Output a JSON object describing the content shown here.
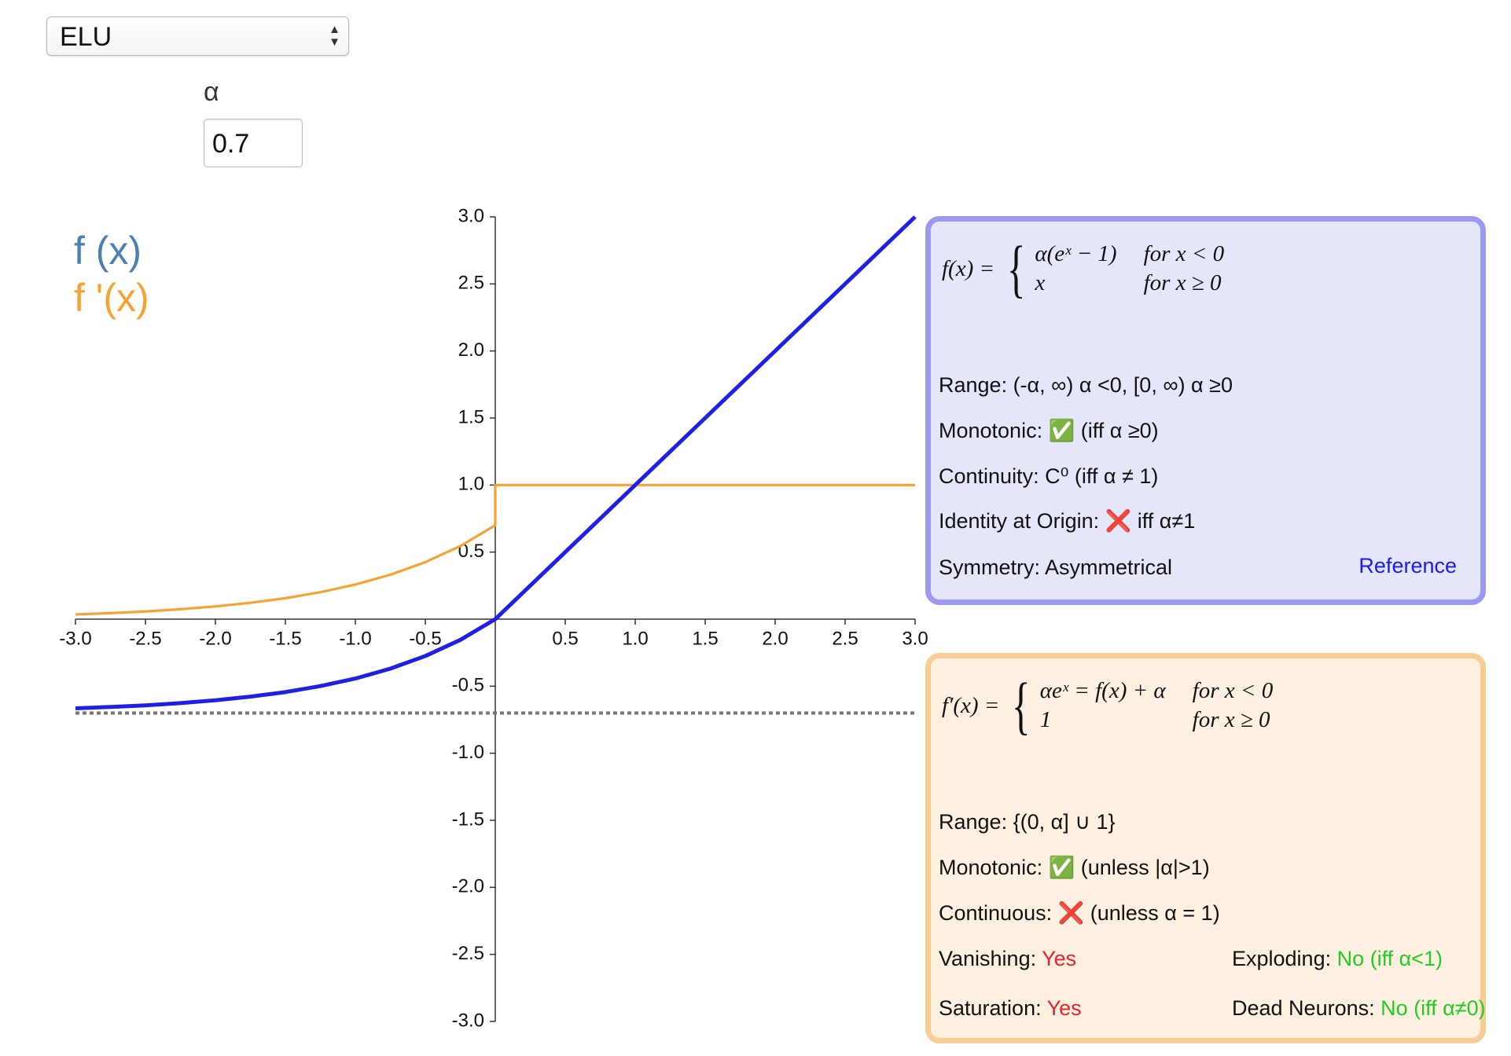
{
  "controls": {
    "activation": "ELU",
    "param_label": "α",
    "param_value": "0.7"
  },
  "chart_data": {
    "type": "line",
    "x": [
      -3,
      -2.75,
      -2.5,
      -2.25,
      -2,
      -1.75,
      -1.5,
      -1.25,
      -1,
      -0.75,
      -0.5,
      -0.25,
      0,
      0,
      3
    ],
    "series": [
      {
        "name": "f (x)",
        "color": "#1f1fe8",
        "legend_color": "#4a80b4",
        "values": [
          -0.665,
          -0.655,
          -0.643,
          -0.626,
          -0.605,
          -0.578,
          -0.544,
          -0.499,
          -0.443,
          -0.369,
          -0.275,
          -0.155,
          0,
          0,
          3
        ]
      },
      {
        "name": "f '(x)",
        "color": "#f6a334",
        "legend_color": "#f6a334",
        "values": [
          0.035,
          0.045,
          0.057,
          0.074,
          0.095,
          0.122,
          0.156,
          0.201,
          0.258,
          0.331,
          0.425,
          0.545,
          0.7,
          1,
          1
        ]
      }
    ],
    "asymptote": -0.7,
    "xlim": [
      -3,
      3
    ],
    "ylim": [
      -3,
      3
    ],
    "xticks": [
      {
        "value": -3,
        "label": "-3.0"
      },
      -2.5,
      {
        "value": -2,
        "label": "-2.0"
      },
      -1.5,
      {
        "value": -1,
        "label": "-1.0"
      },
      -0.5,
      0.5,
      {
        "value": 1,
        "label": "1.0"
      },
      1.5,
      {
        "value": 2,
        "label": "2.0"
      },
      2.5,
      {
        "value": 3,
        "label": "3.0"
      }
    ],
    "yticks": [
      {
        "value": 3,
        "label": "3.0"
      },
      2.5,
      {
        "value": 2,
        "label": "2.0"
      },
      1.5,
      {
        "value": 1,
        "label": "1.0"
      },
      0.5,
      -0.5,
      {
        "value": -1,
        "label": "-1.0"
      },
      -1.5,
      {
        "value": -2,
        "label": "-2.0"
      },
      -2.5,
      {
        "value": -3,
        "label": "-3.0"
      }
    ]
  },
  "function_panel": {
    "formula": {
      "lhs": "f(x) =",
      "cases": [
        [
          "α(eˣ − 1)",
          "for x < 0"
        ],
        [
          "x",
          "for x ≥ 0"
        ]
      ]
    },
    "range": "Range: (-α, ∞) α <0, [0, ∞) α ≥0",
    "monotonic": {
      "label": "Monotonic:",
      "icon": "✅",
      "note": "(iff α ≥0)"
    },
    "continuity": "Continuity: C⁰ (iff α ≠ 1)",
    "identity": {
      "label": "Identity at Origin:",
      "icon": "❌",
      "note": "iff α≠1"
    },
    "symmetry": "Symmetry: Asymmetrical",
    "reference": "Reference"
  },
  "derivative_panel": {
    "formula": {
      "lhs": "f′(x) =",
      "cases": [
        [
          "αeˣ = f(x) + α",
          "for x < 0"
        ],
        [
          "1",
          "for x ≥ 0"
        ]
      ]
    },
    "range": "Range: {(0, α] ∪ 1}",
    "monotonic": {
      "label": "Monotonic:",
      "icon": "✅",
      "note": "(unless |α|>1)"
    },
    "continuous": {
      "label": "Continuous:",
      "icon": "❌",
      "note": "(unless α = 1)"
    },
    "vanishing": {
      "label": "Vanishing:",
      "value": "Yes"
    },
    "exploding": {
      "label": "Exploding:",
      "value": "No (iff α<1)"
    },
    "saturation": {
      "label": "Saturation:",
      "value": "Yes"
    },
    "dead_neurons": {
      "label": "Dead Neurons:",
      "value": "No (iff α≠0)"
    }
  }
}
